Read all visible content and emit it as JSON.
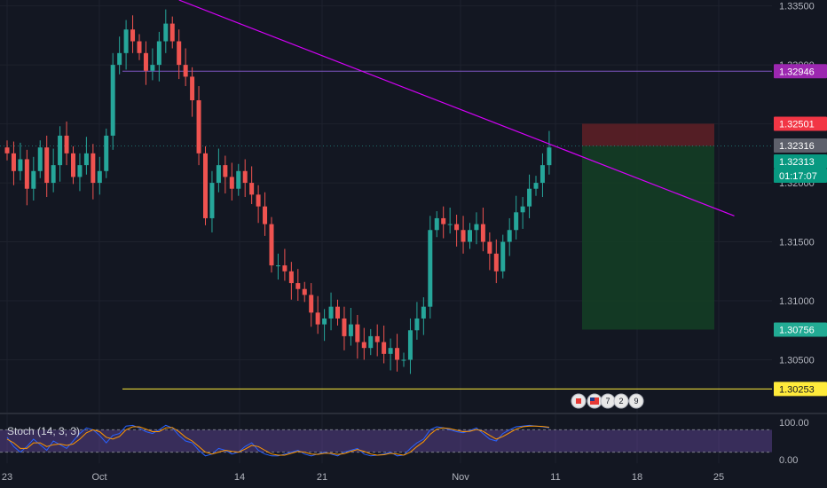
{
  "chart_data": {
    "type": "candlestick",
    "symbol_pair_price_axis": {
      "ticks": [
        "1.33500",
        "1.33000",
        "1.32500",
        "1.32000",
        "1.31500",
        "1.31000",
        "1.30500"
      ],
      "range": [
        1.3009,
        1.3355
      ]
    },
    "x_tick_labels": [
      "23",
      "Oct",
      "14",
      "21",
      "Nov",
      "11",
      "18",
      "25"
    ],
    "price_badges": [
      {
        "value": "1.32946",
        "color": "#9c27b0",
        "text_color": "#ffffff"
      },
      {
        "value": "1.32501",
        "color": "#f23645",
        "text_color": "#ffffff"
      },
      {
        "value": "1.32316",
        "color": "#5d606b",
        "text_color": "#ffffff"
      },
      {
        "value": "1.32313",
        "color": "#089981",
        "text_color": "#ffffff"
      },
      {
        "value": "01:17:07",
        "color": "#089981",
        "text_color": "#ffffff"
      },
      {
        "value": "1.30756",
        "color": "#22ab94",
        "text_color": "#ffffff"
      },
      {
        "value": "1.30253",
        "color": "#ffeb3b",
        "text_color": "#131722"
      }
    ],
    "horizontal_lines": [
      {
        "price": 1.32946,
        "color": "#7e57c2"
      },
      {
        "price": 1.30253,
        "color": "#ffeb3b"
      }
    ],
    "trend_line": {
      "from_date_index": 26,
      "from_price": 1.3355,
      "to_date_index": 110,
      "to_price": 1.3172,
      "color": "#d500f9"
    },
    "position": {
      "entry": 1.32313,
      "stop": 1.32501,
      "target": 1.30756,
      "start_index": 82,
      "end_index": 101,
      "stop_color": "#5c1f26",
      "target_color": "#143d25"
    },
    "candle_colors": {
      "up": "#26a69a",
      "down": "#ef5350"
    },
    "closes": [
      1.3225,
      1.321,
      1.322,
      1.3195,
      1.321,
      1.323,
      1.32,
      1.3215,
      1.324,
      1.3225,
      1.3205,
      1.3215,
      1.3225,
      1.32,
      1.321,
      1.324,
      1.33,
      1.331,
      1.333,
      1.332,
      1.331,
      1.3295,
      1.33,
      1.332,
      1.3335,
      1.332,
      1.33,
      1.329,
      1.327,
      1.3225,
      1.317,
      1.32,
      1.3215,
      1.3205,
      1.3195,
      1.321,
      1.32,
      1.319,
      1.318,
      1.3165,
      1.313,
      1.313,
      1.3125,
      1.3115,
      1.311,
      1.3105,
      1.309,
      1.308,
      1.3085,
      1.3095,
      1.3085,
      1.307,
      1.308,
      1.3065,
      1.306,
      1.307,
      1.3065,
      1.3055,
      1.306,
      1.305,
      1.305,
      1.3075,
      1.3085,
      1.3095,
      1.316,
      1.317,
      1.3165,
      1.3165,
      1.316,
      1.315,
      1.316,
      1.3165,
      1.315,
      1.314,
      1.3125,
      1.315,
      1.316,
      1.3175,
      1.318,
      1.3195,
      1.32,
      1.3215,
      1.323
    ],
    "stochastic": {
      "label": "Stoch (14, 3, 3)",
      "ticks": [
        "100.00",
        "0.00"
      ],
      "band_color": "#7e57c2",
      "k_color": "#2962ff",
      "d_color": "#ff9800",
      "k": [
        60,
        35,
        20,
        35,
        55,
        40,
        25,
        50,
        40,
        30,
        50,
        70,
        85,
        80,
        65,
        45,
        65,
        70,
        90,
        92,
        85,
        75,
        70,
        80,
        92,
        85,
        65,
        50,
        45,
        25,
        10,
        15,
        30,
        25,
        15,
        20,
        35,
        45,
        25,
        15,
        10,
        10,
        15,
        20,
        25,
        15,
        10,
        15,
        20,
        15,
        10,
        20,
        25,
        30,
        15,
        10,
        12,
        15,
        20,
        10,
        12,
        30,
        45,
        55,
        80,
        88,
        85,
        80,
        75,
        72,
        78,
        85,
        70,
        55,
        50,
        70,
        80,
        88,
        90,
        92,
        90,
        88,
        85
      ],
      "d": [
        55,
        45,
        30,
        30,
        45,
        45,
        35,
        40,
        42,
        38,
        42,
        55,
        72,
        80,
        75,
        60,
        55,
        62,
        80,
        88,
        88,
        82,
        75,
        75,
        85,
        86,
        75,
        60,
        50,
        35,
        20,
        15,
        20,
        25,
        22,
        20,
        28,
        38,
        35,
        25,
        15,
        12,
        12,
        17,
        22,
        20,
        15,
        14,
        17,
        17,
        14,
        16,
        22,
        27,
        22,
        15,
        12,
        13,
        17,
        15,
        12,
        20,
        35,
        48,
        68,
        82,
        85,
        83,
        79,
        75,
        76,
        81,
        76,
        65,
        55,
        62,
        72,
        82,
        88,
        90,
        90,
        89,
        87
      ]
    },
    "events": [
      {
        "label": "",
        "kind": "flag-ca"
      },
      {
        "label": "",
        "kind": "flag-us"
      },
      {
        "label": "7",
        "kind": "count"
      },
      {
        "label": "2",
        "kind": "count"
      },
      {
        "label": "9",
        "kind": "count"
      }
    ]
  }
}
